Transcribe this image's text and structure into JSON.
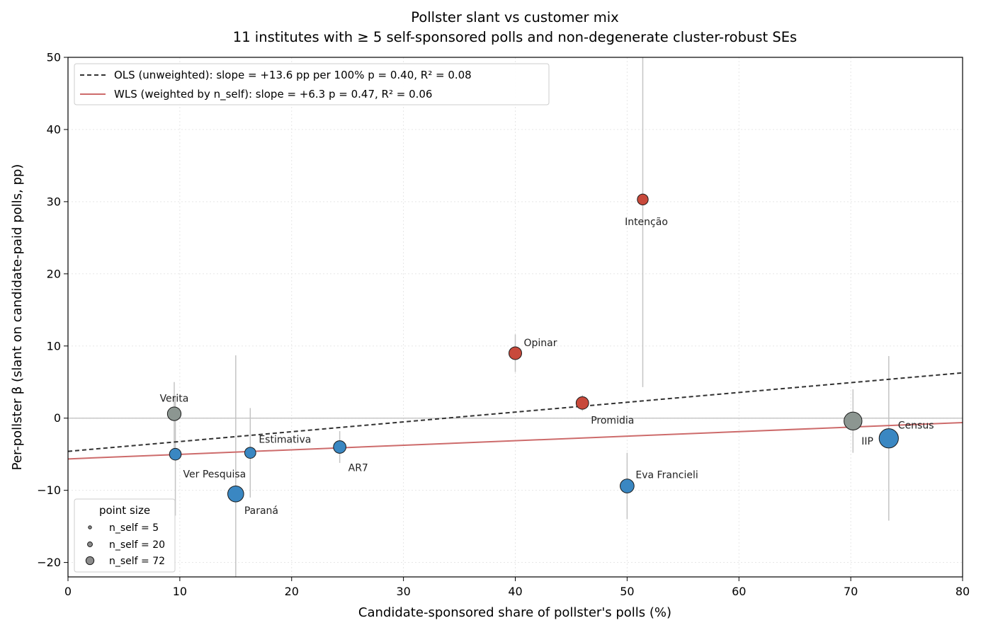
{
  "chart_data": {
    "type": "scatter",
    "title": "Pollster slant vs customer mix",
    "subtitle": "11 institutes with ≥ 5 self-sponsored polls and non-degenerate cluster-robust SEs",
    "xlabel": "Candidate-sponsored share of pollster's polls (%)",
    "ylabel": "Per-pollster β   (slant on candidate-paid polls, pp)",
    "xlim": [
      0,
      80
    ],
    "ylim": [
      -22,
      50
    ],
    "xticks": [
      0,
      10,
      20,
      30,
      40,
      50,
      60,
      70,
      80
    ],
    "yticks": [
      -20,
      -10,
      0,
      10,
      20,
      30,
      40,
      50
    ],
    "grid": true,
    "points": [
      {
        "name": "Verita",
        "x": 9.5,
        "y": 0.6,
        "n_self": 28,
        "ci": [
          -5.2,
          5.0
        ],
        "color": "#8c9691"
      },
      {
        "name": "Ver Pesquisa",
        "x": 9.6,
        "y": -5.0,
        "n_self": 18,
        "ci": [
          -13.5,
          3.0
        ],
        "color": "#3a87c2"
      },
      {
        "name": "Paraná",
        "x": 15.0,
        "y": -10.5,
        "n_self": 44,
        "ci": [
          -22.0,
          8.7
        ],
        "color": "#3a87c2"
      },
      {
        "name": "Estimativa",
        "x": 16.3,
        "y": -4.8,
        "n_self": 15,
        "ci": [
          -11.0,
          1.4
        ],
        "color": "#3a87c2"
      },
      {
        "name": "AR7",
        "x": 24.3,
        "y": -4.0,
        "n_self": 22,
        "ci": [
          -6.2,
          -1.8
        ],
        "color": "#3a87c2"
      },
      {
        "name": "Opinar",
        "x": 40.0,
        "y": 9.0,
        "n_self": 23,
        "ci": [
          6.4,
          11.6
        ],
        "color": "#c8493b"
      },
      {
        "name": "Promidia",
        "x": 46.0,
        "y": 2.1,
        "n_self": 22,
        "ci": [
          1.0,
          3.2
        ],
        "color": "#c8493b"
      },
      {
        "name": "Eva Francieli",
        "x": 50.0,
        "y": -9.4,
        "n_self": 30,
        "ci": [
          -14.0,
          -4.8
        ],
        "color": "#3a87c2"
      },
      {
        "name": "Intenção",
        "x": 51.4,
        "y": 30.3,
        "n_self": 14,
        "ci": [
          4.3,
          56.3
        ],
        "color": "#c8493b"
      },
      {
        "name": "IIP",
        "x": 70.2,
        "y": -0.4,
        "n_self": 60,
        "ci": [
          -4.8,
          4.0
        ],
        "color": "#8c9691"
      },
      {
        "name": "Census",
        "x": 73.4,
        "y": -2.8,
        "n_self": 72,
        "ci": [
          -14.2,
          8.6
        ],
        "color": "#3a87c2"
      }
    ],
    "ols": {
      "label": "OLS (unweighted): slope = +13.6 pp per 100%   p = 0.40,  R² = 0.08",
      "intercept": -4.6,
      "slope": 0.136,
      "color": "#333333"
    },
    "wls": {
      "label": "WLS (weighted by n_self): slope = +6.3     p = 0.47,  R² = 0.06",
      "intercept": -5.65,
      "slope": 0.063,
      "color": "#cd6b6b"
    },
    "zero_line": 0,
    "legend_placement": "top-left",
    "size_legend": {
      "title": "point size",
      "placement": "bottom-left",
      "items": [
        {
          "label": "n_self = 5",
          "n_self": 5
        },
        {
          "label": "n_self = 20",
          "n_self": 20
        },
        {
          "label": "n_self = 72",
          "n_self": 72
        }
      ]
    }
  }
}
